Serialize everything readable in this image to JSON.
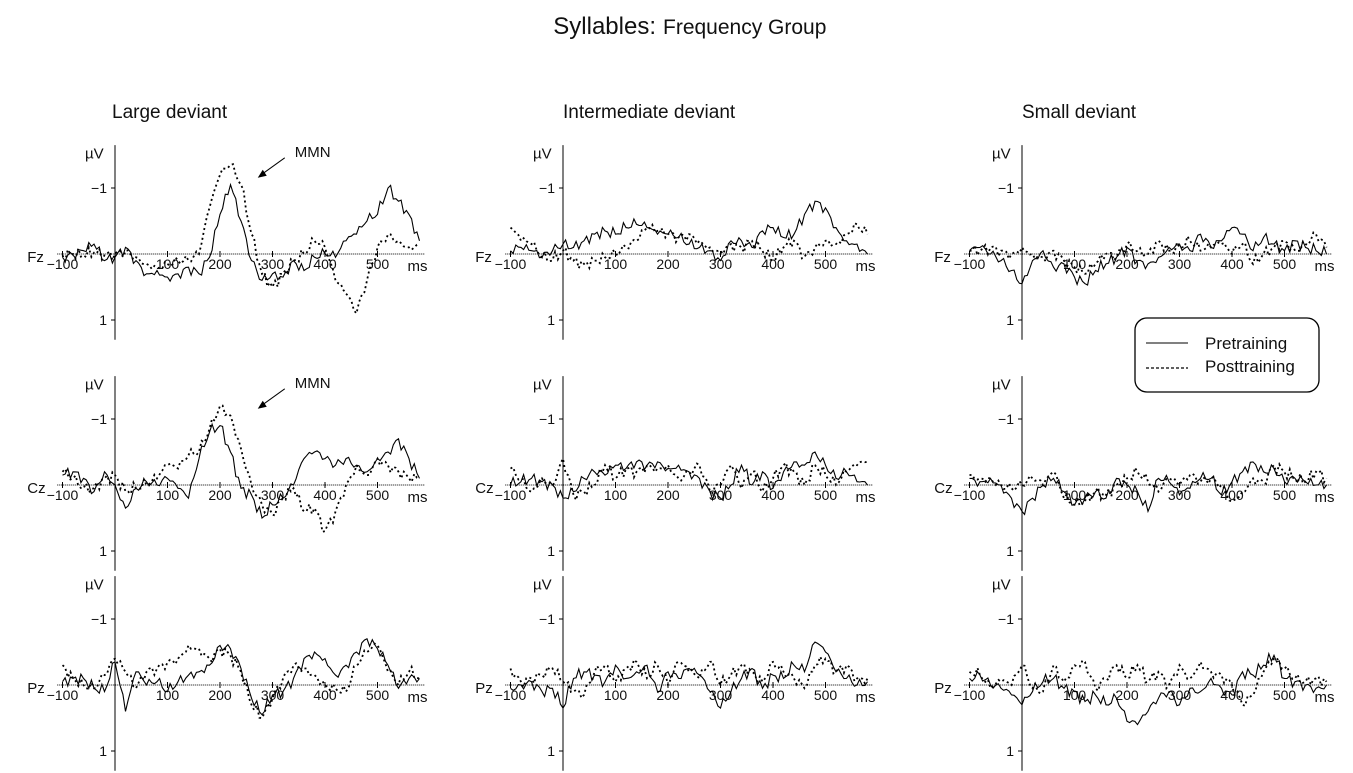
{
  "title": {
    "main": "Syllables:",
    "sub": "Frequency Group"
  },
  "legend": {
    "placement": "right, between first and second rows",
    "items": [
      {
        "label": "Pretraining",
        "style": "solid"
      },
      {
        "label": "Posttraining",
        "style": "dashed"
      }
    ]
  },
  "chart_data": {
    "type": "line",
    "title": "Syllables: Frequency Group",
    "ylabel": "µV",
    "xlabel": "ms",
    "y_inverted": true,
    "xlim": [
      -100,
      580
    ],
    "ylim": [
      1.2,
      -1.4
    ],
    "xticks": [
      -100,
      100,
      200,
      300,
      400,
      500
    ],
    "yticks": [
      -1,
      1
    ],
    "columns": [
      "Large deviant",
      "Intermediate deviant",
      "Small deviant"
    ],
    "rows": [
      "Fz",
      "Cz",
      "Pz"
    ],
    "x": [
      -100,
      -80,
      -60,
      -40,
      -20,
      0,
      20,
      40,
      60,
      80,
      100,
      120,
      140,
      160,
      180,
      200,
      220,
      240,
      260,
      280,
      300,
      320,
      340,
      360,
      380,
      400,
      420,
      440,
      460,
      480,
      500,
      520,
      540,
      560,
      580
    ],
    "panels": [
      {
        "column": "Large deviant",
        "channel": "Fz",
        "annotation": "MMN",
        "series": [
          {
            "name": "Pretraining",
            "values": [
              0.05,
              0.02,
              -0.05,
              -0.15,
              0.1,
              0.05,
              -0.1,
              0.1,
              0.3,
              0.25,
              0.35,
              0.3,
              0.2,
              0.3,
              0.05,
              -0.6,
              -1.05,
              -0.5,
              0.1,
              0.4,
              0.3,
              0.35,
              0.1,
              0.25,
              0.05,
              0.0,
              0.05,
              -0.2,
              -0.3,
              -0.5,
              -0.6,
              -1.0,
              -0.8,
              -0.6,
              -0.2
            ]
          },
          {
            "name": "Posttraining",
            "values": [
              0.02,
              0.0,
              0.02,
              -0.02,
              0.02,
              0.0,
              -0.05,
              0.05,
              0.15,
              0.2,
              0.15,
              0.1,
              0.1,
              0.0,
              -0.7,
              -1.2,
              -1.35,
              -1.05,
              -0.3,
              0.3,
              0.5,
              0.3,
              0.1,
              0.0,
              -0.2,
              -0.1,
              0.4,
              0.6,
              0.9,
              0.4,
              -0.1,
              -0.3,
              -0.2,
              -0.1,
              -0.15
            ]
          }
        ]
      },
      {
        "column": "Intermediate deviant",
        "channel": "Fz",
        "series": [
          {
            "name": "Pretraining",
            "values": [
              -0.05,
              -0.1,
              -0.05,
              0.05,
              -0.05,
              -0.15,
              -0.1,
              -0.2,
              -0.3,
              -0.35,
              -0.3,
              -0.4,
              -0.45,
              -0.4,
              -0.3,
              -0.3,
              -0.25,
              -0.15,
              -0.1,
              -0.05,
              0.1,
              -0.2,
              -0.2,
              -0.1,
              -0.35,
              -0.4,
              -0.25,
              -0.3,
              -0.6,
              -0.8,
              -0.7,
              -0.4,
              -0.2,
              -0.15,
              0.0
            ]
          },
          {
            "name": "Posttraining",
            "values": [
              -0.4,
              -0.2,
              -0.15,
              0.05,
              0.1,
              -0.05,
              0.1,
              0.15,
              0.1,
              0.05,
              0.0,
              -0.1,
              -0.2,
              -0.4,
              -0.35,
              -0.3,
              -0.25,
              -0.3,
              -0.2,
              -0.1,
              -0.05,
              -0.15,
              -0.1,
              -0.2,
              -0.05,
              0.1,
              -0.1,
              -0.2,
              0.05,
              -0.1,
              -0.2,
              -0.15,
              -0.3,
              -0.45,
              -0.3
            ]
          }
        ]
      },
      {
        "column": "Small deviant",
        "channel": "Fz",
        "series": [
          {
            "name": "Pretraining",
            "values": [
              -0.05,
              -0.1,
              0.0,
              0.1,
              0.25,
              0.45,
              0.1,
              -0.05,
              0.2,
              0.15,
              0.35,
              0.45,
              0.25,
              0.15,
              0.05,
              -0.1,
              0.1,
              0.15,
              0.05,
              -0.1,
              -0.15,
              -0.05,
              -0.3,
              -0.1,
              -0.2,
              -0.4,
              -0.3,
              -0.05,
              -0.25,
              -0.15,
              -0.05,
              -0.2,
              -0.1,
              -0.05,
              0.0
            ]
          },
          {
            "name": "Posttraining",
            "values": [
              -0.05,
              -0.05,
              -0.1,
              -0.05,
              0.0,
              -0.1,
              0.0,
              0.05,
              -0.05,
              0.1,
              0.2,
              0.3,
              0.15,
              0.0,
              0.05,
              -0.15,
              -0.05,
              0.0,
              -0.2,
              -0.05,
              -0.1,
              -0.2,
              -0.05,
              -0.1,
              -0.15,
              0.0,
              -0.15,
              0.15,
              0.0,
              -0.1,
              -0.2,
              -0.05,
              -0.15,
              -0.3,
              -0.1
            ]
          }
        ]
      },
      {
        "column": "Large deviant",
        "channel": "Cz",
        "annotation": "MMN",
        "series": [
          {
            "name": "Pretraining",
            "values": [
              -0.15,
              -0.2,
              -0.1,
              0.1,
              -0.2,
              0.0,
              0.35,
              0.05,
              -0.05,
              0.0,
              -0.1,
              0.05,
              0.2,
              -0.4,
              -0.8,
              -0.9,
              -0.5,
              0.05,
              0.15,
              0.5,
              0.3,
              0.2,
              0.0,
              -0.4,
              -0.5,
              -0.4,
              -0.3,
              -0.4,
              -0.3,
              -0.2,
              -0.4,
              -0.5,
              -0.7,
              -0.4,
              -0.1
            ]
          },
          {
            "name": "Posttraining",
            "values": [
              -0.2,
              -0.1,
              0.05,
              0.05,
              -0.1,
              -0.15,
              0.1,
              0.05,
              0.0,
              -0.1,
              -0.3,
              -0.25,
              -0.45,
              -0.5,
              -0.85,
              -1.2,
              -1.05,
              -0.55,
              0.0,
              0.3,
              0.45,
              0.2,
              0.05,
              0.4,
              0.35,
              0.7,
              0.4,
              0.0,
              -0.3,
              -0.15,
              -0.4,
              -0.3,
              -0.2,
              -0.1,
              -0.1
            ]
          }
        ]
      },
      {
        "column": "Intermediate deviant",
        "channel": "Cz",
        "series": [
          {
            "name": "Pretraining",
            "values": [
              0.0,
              -0.05,
              -0.1,
              -0.05,
              0.0,
              0.2,
              0.1,
              -0.1,
              -0.2,
              -0.15,
              -0.3,
              -0.25,
              -0.35,
              -0.3,
              -0.35,
              -0.25,
              -0.3,
              -0.2,
              -0.1,
              0.1,
              0.2,
              0.0,
              -0.3,
              0.0,
              -0.2,
              0.05,
              -0.2,
              -0.35,
              -0.3,
              -0.5,
              -0.3,
              -0.1,
              -0.2,
              -0.05,
              0.0
            ]
          },
          {
            "name": "Posttraining",
            "values": [
              -0.25,
              -0.1,
              0.1,
              -0.1,
              0.0,
              -0.4,
              0.15,
              0.1,
              0.0,
              -0.3,
              -0.1,
              -0.25,
              -0.2,
              -0.3,
              -0.25,
              -0.3,
              -0.1,
              -0.2,
              -0.3,
              0.1,
              0.0,
              -0.3,
              0.05,
              -0.2,
              0.1,
              -0.1,
              -0.3,
              -0.2,
              0.0,
              -0.3,
              -0.15,
              0.0,
              -0.2,
              -0.3,
              -0.35
            ]
          }
        ]
      },
      {
        "column": "Small deviant",
        "channel": "Cz",
        "series": [
          {
            "name": "Pretraining",
            "values": [
              -0.1,
              -0.05,
              -0.1,
              0.0,
              0.2,
              0.4,
              0.2,
              0.0,
              -0.1,
              0.1,
              0.3,
              0.2,
              0.1,
              0.2,
              -0.1,
              0.0,
              0.1,
              0.4,
              -0.1,
              -0.05,
              0.15,
              0.05,
              -0.1,
              -0.1,
              0.15,
              -0.05,
              -0.2,
              -0.35,
              -0.2,
              -0.25,
              -0.05,
              -0.1,
              -0.05,
              0.0,
              0.0
            ]
          },
          {
            "name": "Posttraining",
            "values": [
              -0.15,
              -0.1,
              -0.1,
              0.0,
              0.05,
              0.0,
              -0.1,
              0.0,
              -0.2,
              0.2,
              0.3,
              0.25,
              0.1,
              0.15,
              0.0,
              -0.1,
              -0.2,
              -0.05,
              0.1,
              -0.1,
              0.0,
              -0.15,
              -0.05,
              -0.1,
              0.0,
              0.25,
              0.1,
              -0.1,
              -0.05,
              -0.3,
              -0.2,
              -0.1,
              -0.05,
              -0.2,
              -0.1
            ]
          }
        ]
      },
      {
        "column": "Large deviant",
        "channel": "Pz",
        "series": [
          {
            "name": "Pretraining",
            "values": [
              -0.05,
              -0.1,
              -0.1,
              0.05,
              0.1,
              -0.35,
              0.4,
              -0.2,
              0.0,
              -0.05,
              0.1,
              -0.05,
              -0.15,
              -0.2,
              -0.3,
              -0.6,
              -0.55,
              -0.25,
              0.2,
              0.45,
              0.15,
              0.1,
              -0.1,
              -0.4,
              -0.5,
              -0.4,
              -0.15,
              -0.3,
              -0.5,
              -0.7,
              -0.55,
              -0.3,
              0.05,
              -0.1,
              -0.1
            ]
          },
          {
            "name": "Posttraining",
            "values": [
              -0.3,
              -0.1,
              0.0,
              0.05,
              -0.15,
              -0.4,
              -0.2,
              0.05,
              -0.2,
              -0.25,
              -0.35,
              -0.4,
              -0.6,
              -0.55,
              -0.4,
              -0.55,
              -0.45,
              -0.2,
              0.3,
              0.5,
              0.2,
              -0.1,
              -0.3,
              -0.25,
              -0.15,
              0.0,
              0.05,
              0.1,
              -0.3,
              -0.5,
              -0.6,
              -0.2,
              0.0,
              -0.2,
              -0.1
            ]
          }
        ]
      },
      {
        "column": "Intermediate deviant",
        "channel": "Pz",
        "series": [
          {
            "name": "Pretraining",
            "values": [
              0.05,
              0.0,
              -0.05,
              0.1,
              0.05,
              0.35,
              -0.1,
              -0.2,
              -0.15,
              -0.05,
              -0.3,
              -0.1,
              -0.2,
              -0.3,
              0.1,
              -0.2,
              -0.1,
              -0.25,
              -0.15,
              0.1,
              0.35,
              0.1,
              -0.1,
              -0.25,
              0.05,
              -0.15,
              -0.1,
              -0.3,
              -0.2,
              -0.65,
              -0.5,
              -0.2,
              -0.1,
              0.0,
              -0.05
            ]
          },
          {
            "name": "Posttraining",
            "values": [
              -0.25,
              -0.05,
              -0.1,
              -0.15,
              -0.25,
              -0.05,
              0.1,
              0.15,
              -0.2,
              -0.3,
              -0.05,
              -0.25,
              -0.35,
              -0.1,
              -0.3,
              0.0,
              -0.35,
              -0.2,
              -0.1,
              -0.35,
              0.0,
              -0.15,
              -0.3,
              -0.2,
              -0.05,
              -0.35,
              -0.2,
              -0.1,
              0.05,
              -0.3,
              -0.4,
              -0.2,
              -0.3,
              -0.1,
              -0.1
            ]
          }
        ]
      },
      {
        "column": "Small deviant",
        "channel": "Pz",
        "series": [
          {
            "name": "Pretraining",
            "values": [
              -0.1,
              -0.15,
              0.0,
              0.05,
              0.15,
              0.3,
              0.1,
              -0.05,
              -0.1,
              0.05,
              0.1,
              0.25,
              0.15,
              0.3,
              0.2,
              0.55,
              0.6,
              0.4,
              0.2,
              0.1,
              0.3,
              0.05,
              0.1,
              -0.1,
              0.05,
              0.15,
              -0.2,
              -0.15,
              -0.3,
              -0.45,
              -0.1,
              -0.05,
              0.0,
              0.05,
              0.0
            ]
          },
          {
            "name": "Posttraining",
            "values": [
              -0.2,
              -0.15,
              0.05,
              -0.05,
              0.0,
              -0.3,
              0.05,
              0.1,
              -0.3,
              -0.05,
              -0.3,
              -0.35,
              0.05,
              -0.1,
              -0.3,
              -0.1,
              -0.3,
              -0.05,
              -0.2,
              0.0,
              -0.3,
              -0.1,
              -0.35,
              -0.2,
              -0.15,
              0.0,
              0.3,
              0.15,
              -0.2,
              -0.4,
              -0.25,
              -0.1,
              -0.05,
              -0.1,
              -0.05
            ]
          }
        ]
      }
    ]
  }
}
